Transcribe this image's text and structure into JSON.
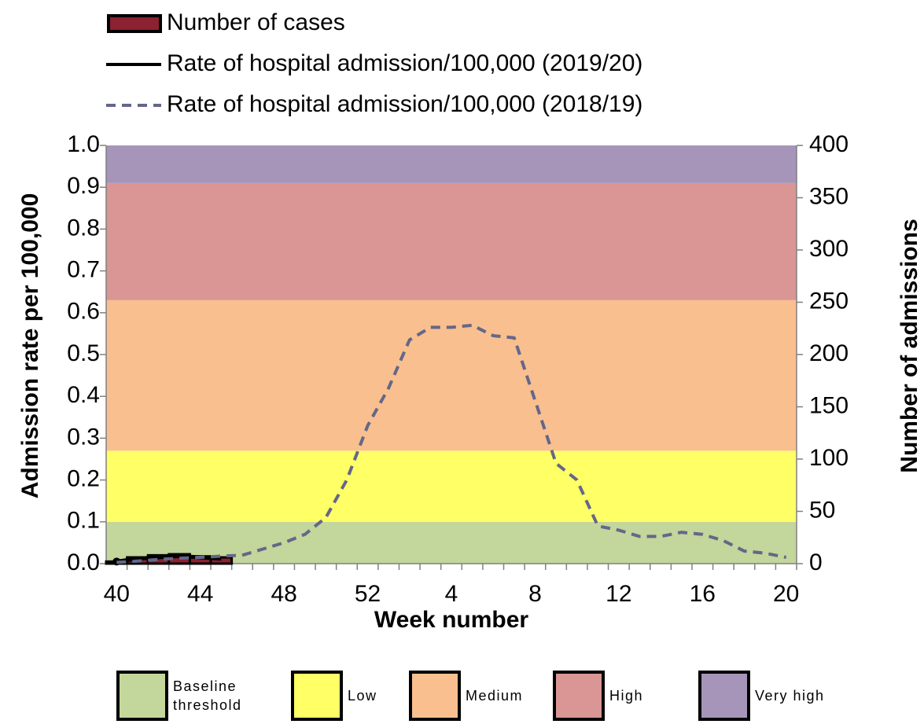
{
  "chart_data": {
    "type": "combo",
    "x_label": "Week number",
    "y_label": "Admission rate per 100,000",
    "y2_label": "Number of admissions",
    "categories": [
      40,
      null,
      null,
      null,
      44,
      null,
      null,
      null,
      48,
      null,
      null,
      null,
      52,
      null,
      null,
      null,
      4,
      null,
      null,
      null,
      8,
      null,
      null,
      null,
      12,
      null,
      null,
      null,
      16,
      null,
      null,
      null,
      20
    ],
    "ylim": [
      0,
      1
    ],
    "yticks": [
      {
        "value": 0,
        "label": "0.0"
      },
      0.1,
      0.2,
      0.3,
      0.4,
      0.5,
      0.6,
      0.7,
      0.8,
      0.9,
      {
        "value": 1,
        "label": "1.0"
      }
    ],
    "y2lim": [
      0,
      400
    ],
    "y2ticks": [
      0,
      50,
      100,
      150,
      200,
      250,
      300,
      350,
      400
    ],
    "bands": [
      {
        "name": "Baseline threshold",
        "color": "#c3d69b",
        "from": 0,
        "to": 0.1
      },
      {
        "name": "Low",
        "color": "#ffff66",
        "from": 0.1,
        "to": 0.27
      },
      {
        "name": "Medium",
        "color": "#f9bf8f",
        "from": 0.27,
        "to": 0.63
      },
      {
        "name": "High",
        "color": "#d99694",
        "from": 0.63,
        "to": 0.91
      },
      {
        "name": "Very high",
        "color": "#a694b9",
        "from": 0.91,
        "to": 1
      }
    ],
    "series": [
      {
        "name": "Number of cases",
        "type": "bar",
        "axis": "y2",
        "color": "#8b2131",
        "values": [
          2,
          6,
          8,
          9,
          7,
          6,
          null,
          null,
          null,
          null,
          null,
          null,
          null,
          null,
          null,
          null,
          null,
          null,
          null,
          null,
          null,
          null,
          null,
          null,
          null,
          null,
          null,
          null,
          null,
          null,
          null,
          null,
          null
        ]
      },
      {
        "name": "Rate of hospital admission/100,000 (2019/20)",
        "type": "line",
        "color": "#000000",
        "dashed": false,
        "values": [
          0.005,
          0.012,
          0.015,
          0.018,
          0.015,
          0.012,
          null,
          null,
          null,
          null,
          null,
          null,
          null,
          null,
          null,
          null,
          null,
          null,
          null,
          null,
          null,
          null,
          null,
          null,
          null,
          null,
          null,
          null,
          null,
          null,
          null,
          null,
          null
        ]
      },
      {
        "name": "Rate of hospital admission/100,000 (2018/19)",
        "type": "line",
        "color": "#646788",
        "dashed": true,
        "values": [
          0.003,
          0.006,
          0.01,
          0.013,
          0.015,
          0.018,
          0.02,
          0.035,
          0.05,
          0.07,
          0.11,
          0.2,
          0.33,
          0.42,
          0.535,
          0.565,
          0.565,
          0.57,
          0.545,
          0.54,
          0.39,
          0.24,
          0.2,
          0.09,
          0.08,
          0.065,
          0.065,
          0.075,
          0.07,
          0.055,
          0.03,
          0.025,
          0.015
        ]
      }
    ]
  }
}
